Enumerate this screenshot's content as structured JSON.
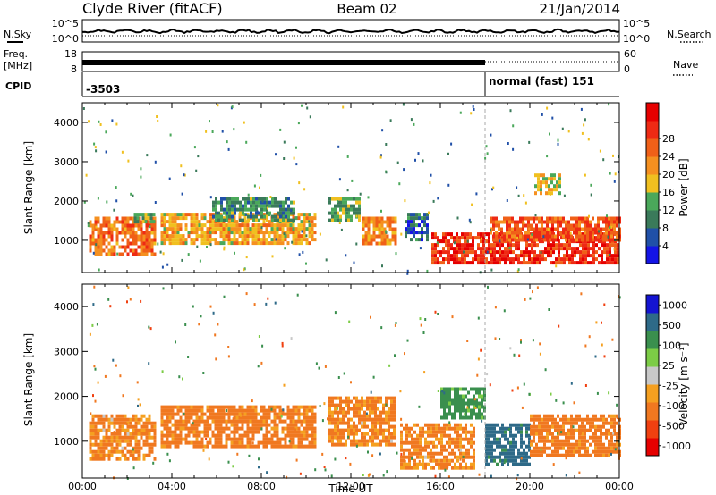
{
  "header": {
    "station": "Clyde River (fitACF)",
    "beam": "Beam 02",
    "date": "21/Jan/2014"
  },
  "info_panels": {
    "nsky_label": "N.Sky",
    "nsearch_label": "N.Search",
    "freq_label_line1": "Freq.",
    "freq_label_line2": "[MHz]",
    "nave_label": "Nave",
    "cpid_label": "CPID",
    "noise_ticks": [
      "10^5",
      "10^0"
    ],
    "freq_ticks_left": [
      "18",
      "8"
    ],
    "freq_ticks_right": [
      "60",
      "0"
    ],
    "cpid_first": "-3503",
    "cpid_second": "normal (fast) 151",
    "cpid_change_hour": 18.0
  },
  "colors": {
    "power_scale": [
      "#1414e6",
      "#2050a8",
      "#3a7a5a",
      "#4aa85a",
      "#f0c020",
      "#f59020",
      "#f06018",
      "#ee2a14",
      "#e60000"
    ],
    "velocity_scale": [
      "#e60000",
      "#f04010",
      "#f07820",
      "#f5a020",
      "#c8c8c8",
      "#7ccc46",
      "#3a8f4e",
      "#2e6a88",
      "#1414d2"
    ]
  },
  "chart_data": [
    {
      "type": "heatmap",
      "title": "Power",
      "ylabel": "Slant Range [km]",
      "xlim_hours": [
        0,
        24
      ],
      "ylim_km": [
        180,
        4500
      ],
      "yticks": [
        "1000",
        "2000",
        "3000",
        "4000"
      ],
      "colorbar_label": "Power [dB]",
      "colorbar_ticks": [
        "4",
        "8",
        "12",
        "16",
        "20",
        "24",
        "28"
      ],
      "regions": [
        {
          "t0": 0.3,
          "t1": 3.2,
          "r0": 600,
          "r1": 1600,
          "value": 22
        },
        {
          "t0": 2.3,
          "t1": 3.2,
          "r0": 1500,
          "r1": 1700,
          "value": 12
        },
        {
          "t0": 3.5,
          "t1": 10.4,
          "r0": 900,
          "r1": 1700,
          "value": 18
        },
        {
          "t0": 5.8,
          "t1": 9.5,
          "r0": 1500,
          "r1": 2100,
          "value": 10
        },
        {
          "t0": 11.0,
          "t1": 12.4,
          "r0": 1500,
          "r1": 2100,
          "value": 12
        },
        {
          "t0": 12.5,
          "t1": 14.0,
          "r0": 900,
          "r1": 1600,
          "value": 20
        },
        {
          "t0": 14.4,
          "t1": 15.4,
          "r0": 1000,
          "r1": 1700,
          "value": 7
        },
        {
          "t0": 15.6,
          "t1": 24.0,
          "r0": 400,
          "r1": 1200,
          "value": 27
        },
        {
          "t0": 18.2,
          "t1": 24.0,
          "r0": 1000,
          "r1": 1600,
          "value": 24
        },
        {
          "t0": 20.2,
          "t1": 21.4,
          "r0": 2200,
          "r1": 2700,
          "value": 16
        }
      ]
    },
    {
      "type": "heatmap",
      "title": "Velocity",
      "xlabel": "Time UT",
      "ylabel": "Slant Range [km]",
      "xlim_hours": [
        0,
        24
      ],
      "xticks": [
        "00:00",
        "04:00",
        "08:00",
        "12:00",
        "16:00",
        "20:00",
        "00:00"
      ],
      "ylim_km": [
        180,
        4500
      ],
      "yticks": [
        "1000",
        "2000",
        "3000",
        "4000"
      ],
      "colorbar_label": "Velocity [m s⁻¹]",
      "colorbar_ticks": [
        "1000",
        "500",
        "100",
        "25",
        "-25",
        "-100",
        "-500",
        "-1000"
      ],
      "regions": [
        {
          "t0": 0.3,
          "t1": 3.2,
          "r0": 600,
          "r1": 1600,
          "value": -150
        },
        {
          "t0": 3.5,
          "t1": 10.4,
          "r0": 900,
          "r1": 1800,
          "value": -200
        },
        {
          "t0": 11.0,
          "t1": 14.0,
          "r0": 900,
          "r1": 2000,
          "value": -150
        },
        {
          "t0": 14.2,
          "t1": 17.5,
          "r0": 400,
          "r1": 1400,
          "value": -150
        },
        {
          "t0": 16.0,
          "t1": 18.0,
          "r0": 1500,
          "r1": 2200,
          "value": 200
        },
        {
          "t0": 18.0,
          "t1": 20.0,
          "r0": 500,
          "r1": 1400,
          "value": 600
        },
        {
          "t0": 20.0,
          "t1": 24.0,
          "r0": 700,
          "r1": 1600,
          "value": -200
        }
      ]
    }
  ]
}
